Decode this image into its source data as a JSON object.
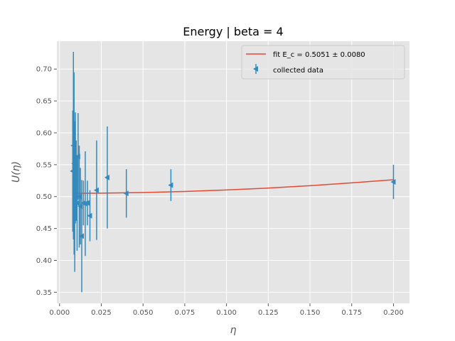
{
  "chart_data": {
    "type": "scatter",
    "title": "Energy | beta = 4",
    "xlabel": "η",
    "ylabel": "U(η)",
    "xlim": [
      -0.0016,
      0.2096
    ],
    "ylim": [
      0.3326,
      0.7437
    ],
    "x_ticks": [
      0.0,
      0.025,
      0.05,
      0.075,
      0.1,
      0.125,
      0.15,
      0.175,
      0.2
    ],
    "x_tick_labels": [
      "0.000",
      "0.025",
      "0.050",
      "0.075",
      "0.100",
      "0.125",
      "0.150",
      "0.175",
      "0.200"
    ],
    "y_ticks": [
      0.35,
      0.4,
      0.45,
      0.5,
      0.55,
      0.6,
      0.65,
      0.7
    ],
    "y_tick_labels": [
      "0.35",
      "0.40",
      "0.45",
      "0.50",
      "0.55",
      "0.60",
      "0.65",
      "0.70"
    ],
    "grid": true,
    "legend_position": "top-right",
    "series": [
      {
        "name": "fit E_c = 0.5051 ± 0.0080",
        "kind": "line",
        "color": "#e24a33",
        "x": [
          0.008,
          0.025,
          0.05,
          0.075,
          0.1,
          0.125,
          0.15,
          0.175,
          0.2
        ],
        "y": [
          0.5052,
          0.5054,
          0.5064,
          0.5081,
          0.5104,
          0.5134,
          0.5171,
          0.5215,
          0.5265
        ]
      },
      {
        "name": "collected data",
        "kind": "errorbar",
        "color": "#348abd",
        "x": [
          0.0079,
          0.0083,
          0.0087,
          0.0091,
          0.0095,
          0.01,
          0.0105,
          0.0111,
          0.0118,
          0.0125,
          0.0133,
          0.0143,
          0.0154,
          0.0167,
          0.0182,
          0.0222,
          0.0286,
          0.04,
          0.0667,
          0.2
        ],
        "y": [
          0.54,
          0.58,
          0.552,
          0.5,
          0.545,
          0.525,
          0.49,
          0.563,
          0.5,
          0.485,
          0.438,
          0.49,
          0.489,
          0.49,
          0.47,
          0.51,
          0.53,
          0.505,
          0.518,
          0.523
        ],
        "yerr": [
          0.095,
          0.147,
          0.143,
          0.118,
          0.087,
          0.063,
          0.075,
          0.068,
          0.08,
          0.06,
          0.088,
          0.035,
          0.082,
          0.035,
          0.04,
          0.078,
          0.08,
          0.038,
          0.025,
          0.027
        ]
      }
    ]
  }
}
